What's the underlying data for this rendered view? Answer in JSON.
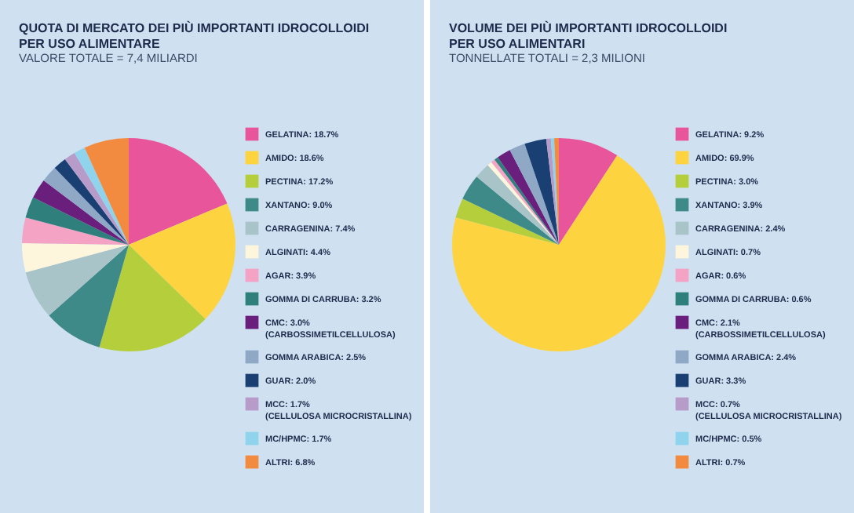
{
  "chart_data": [
    {
      "type": "pie",
      "title": "QUOTA DI MERCATO DEI PIÙ IMPORTANTI IDROCOLLOIDI\nPER USO ALIMENTARE",
      "subtitle": "VALORE TOTALE = 7,4 MILIARDI",
      "legend": "right",
      "categories": [
        "GELATINA: 18.7%",
        "AMIDO: 18.6%",
        "PECTINA: 17.2%",
        "XANTANO: 9.0%",
        "CARRAGENINA: 7.4%",
        "ALGINATI: 4.4%",
        "AGAR: 3.9%",
        "GOMMA DI CARRUBA: 3.2%",
        "CMC: 3.0%\n(CARBOSSIMETILCELLULOSA)",
        "GOMMA ARABICA: 2.5%",
        "GUAR: 2.0%",
        "MCC: 1.7%\n(CELLULOSA MICROCRISTALLINA)",
        "MC/HPMC: 1.7%",
        "ALTRI: 6.8%"
      ],
      "values": [
        18.7,
        18.6,
        17.2,
        9.0,
        7.4,
        4.4,
        3.9,
        3.2,
        3.0,
        2.5,
        2.0,
        1.7,
        1.7,
        6.8
      ],
      "colors": [
        "#e8559a",
        "#fdd440",
        "#b5cf3c",
        "#3e8a88",
        "#a9c4c8",
        "#fdf6dc",
        "#f4a3c5",
        "#2f7f7c",
        "#6b1f7c",
        "#8fa8c6",
        "#1a3f73",
        "#b79cc9",
        "#8fd3ec",
        "#f28b3f"
      ]
    },
    {
      "type": "pie",
      "title": "VOLUME DEI PIÙ IMPORTANTI IDROCOLLOIDI\nPER USO ALIMENTARI",
      "subtitle": "TONNELLATE TOTALI = 2,3 MILIONI",
      "legend": "right",
      "categories": [
        "GELATINA: 9.2%",
        "AMIDO: 69.9%",
        "PECTINA: 3.0%",
        "XANTANO: 3.9%",
        "CARRAGENINA: 2.4%",
        "ALGINATI: 0.7%",
        "AGAR: 0.6%",
        "GOMMA DI CARRUBA: 0.6%",
        "CMC: 2.1%\n(CARBOSSIMETILCELLULOSA)",
        "GOMMA ARABICA: 2.4%",
        "GUAR: 3.3%",
        "MCC: 0.7%\n(CELLULOSA MICROCRISTALLINA)",
        "MC/HPMC: 0.5%",
        "ALTRI: 0.7%"
      ],
      "values": [
        9.2,
        69.9,
        3.0,
        3.9,
        2.4,
        0.7,
        0.6,
        0.6,
        2.1,
        2.4,
        3.3,
        0.7,
        0.5,
        0.7
      ],
      "colors": [
        "#e8559a",
        "#fdd440",
        "#b5cf3c",
        "#3e8a88",
        "#a9c4c8",
        "#fdf6dc",
        "#f4a3c5",
        "#2f7f7c",
        "#6b1f7c",
        "#8fa8c6",
        "#1a3f73",
        "#b79cc9",
        "#8fd3ec",
        "#f28b3f"
      ]
    }
  ]
}
